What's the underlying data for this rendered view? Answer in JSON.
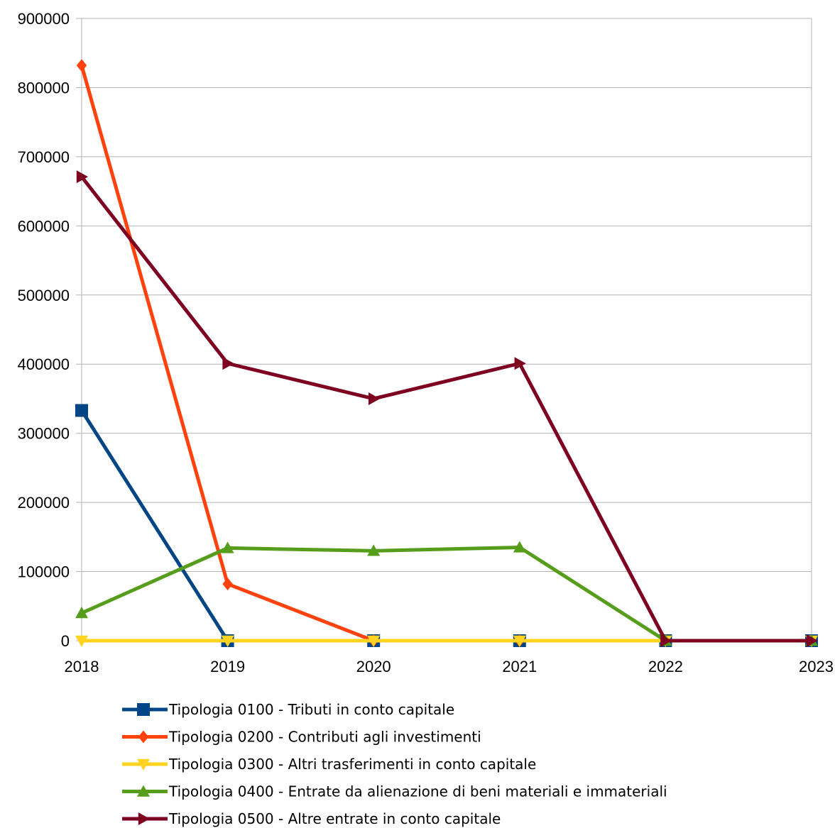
{
  "chart_data": {
    "type": "line",
    "title": "",
    "xlabel": "",
    "ylabel": "",
    "x": [
      "2018",
      "2019",
      "2020",
      "2021",
      "2022",
      "2023"
    ],
    "ylim": [
      0,
      900000
    ],
    "y_ticks": [
      "0",
      "100000",
      "200000",
      "300000",
      "400000",
      "500000",
      "600000",
      "700000",
      "800000",
      "900000"
    ],
    "grid": "horizontal",
    "legend_position": "bottom",
    "series": [
      {
        "name": "Tipologia 0100 - Tributi in conto capitale",
        "color": "#004586",
        "marker": "square",
        "values": [
          333000,
          0,
          0,
          0,
          0,
          0
        ]
      },
      {
        "name": "Tipologia 0200 - Contributi agli investimenti",
        "color": "#ff420e",
        "marker": "diamond",
        "values": [
          832000,
          82000,
          0,
          0,
          0,
          0
        ]
      },
      {
        "name": "Tipologia 0300 - Altri trasferimenti in conto capitale",
        "color": "#ffd320",
        "marker": "triangle-down",
        "values": [
          0,
          0,
          0,
          0,
          0,
          0
        ]
      },
      {
        "name": "Tipologia 0400 - Entrate da alienazione di beni materiali e immateriali",
        "color": "#579d1c",
        "marker": "triangle-up",
        "values": [
          40000,
          134000,
          130000,
          135000,
          0,
          0
        ]
      },
      {
        "name": "Tipologia 0500 - Altre entrate in conto capitale",
        "color": "#7e0021",
        "marker": "triangle-right",
        "values": [
          671000,
          401000,
          350000,
          401000,
          0,
          0
        ]
      }
    ]
  }
}
